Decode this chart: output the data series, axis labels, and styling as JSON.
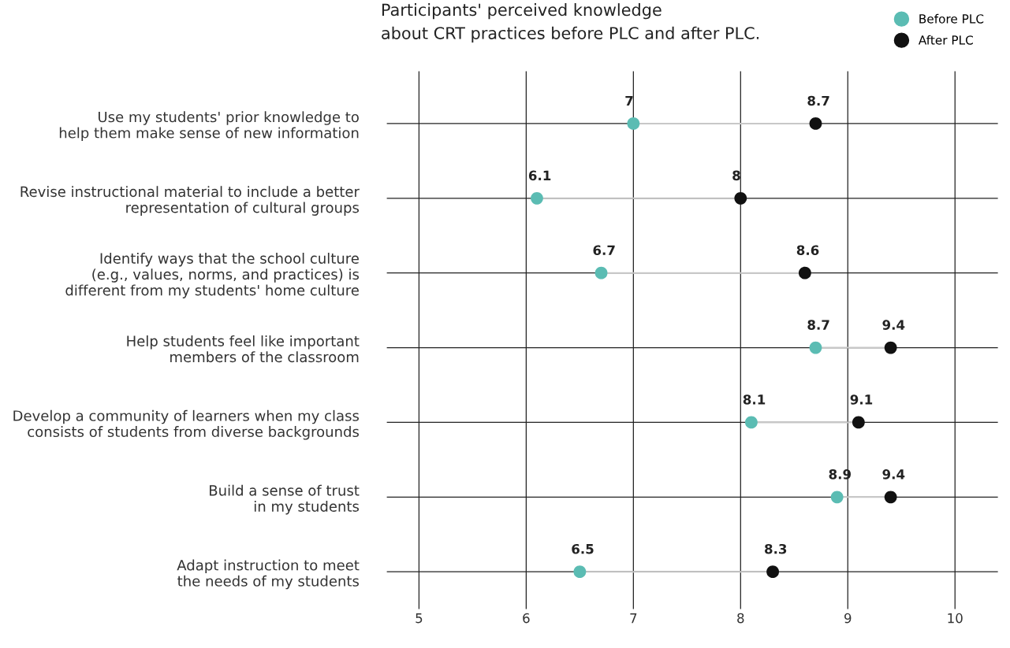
{
  "chart_data": {
    "type": "scatter",
    "orientation": "horizontal",
    "title": "Participants' perceived knowledge\nabout CRT practices before PLC and after PLC.",
    "categories": [
      "Use my students' prior knowledge to\nhelp them make sense of new information",
      "Revise instructional material to include a better\nrepresentation of cultural groups",
      "Identify ways that the school culture\n(e.g., values, norms, and practices) is\ndifferent from my students' home culture",
      "Help students feel like important\nmembers of the classroom",
      "Develop a community of learners when my class\nconsists of students from diverse backgrounds",
      "Build a sense of trust\nin my students",
      "Adapt instruction to meet\nthe needs of my students"
    ],
    "series": [
      {
        "name": "Before PLC",
        "color": "#5bbcb3",
        "values": [
          7,
          6.1,
          6.7,
          8.7,
          8.1,
          8.9,
          6.5
        ]
      },
      {
        "name": "After PLC",
        "color": "#111111",
        "values": [
          8.7,
          8,
          8.6,
          9.4,
          9.1,
          9.4,
          8.3
        ]
      }
    ],
    "xlim": [
      4.7,
      10.4
    ],
    "xticks": [
      5,
      6,
      7,
      8,
      9,
      10
    ],
    "grid": true,
    "legend": "top right",
    "marker": "circle",
    "data_labels": true
  }
}
